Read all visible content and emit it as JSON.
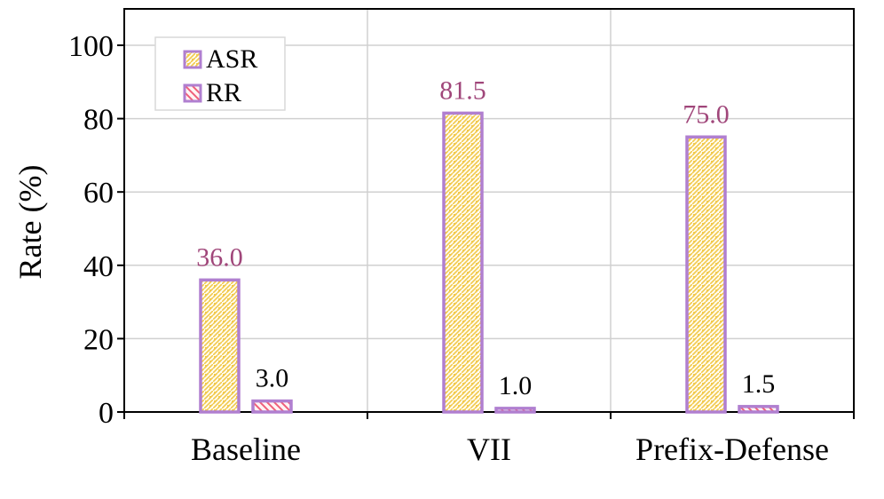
{
  "chart_data": {
    "type": "bar",
    "categories": [
      "Baseline",
      "VII",
      "Prefix-Defense"
    ],
    "series": [
      {
        "name": "ASR",
        "values": [
          36.0,
          81.5,
          75.0
        ],
        "labels": [
          "36.0",
          "81.5",
          "75.0"
        ],
        "label_color": "#a0467a"
      },
      {
        "name": "RR",
        "values": [
          3.0,
          1.0,
          1.5
        ],
        "labels": [
          "3.0",
          "1.0",
          "1.5"
        ],
        "label_color": "#000000"
      }
    ],
    "ylabel": "Rate (%)",
    "xlabel": "",
    "ylim": [
      0,
      100
    ],
    "yticks": [
      "0",
      "20",
      "40",
      "60",
      "80",
      "100"
    ],
    "grid": true,
    "legend_position": "top-left",
    "colors": {
      "bar_border": "#b07fd0",
      "asr_fill": "#f7d66a",
      "rr_fill": "#f07a8c",
      "grid": "#d0d0d0",
      "axis": "#000000"
    }
  }
}
